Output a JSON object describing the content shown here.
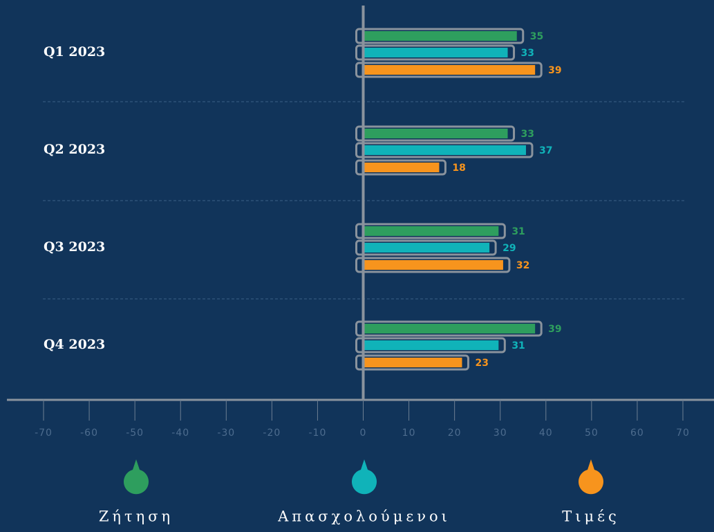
{
  "chart_data": {
    "type": "bar",
    "orientation": "horizontal",
    "categories": [
      "Q1 2023",
      "Q2 2023",
      "Q3 2023",
      "Q4 2023"
    ],
    "series": [
      {
        "name": "Ζήτηση",
        "color": "#2e9e5e",
        "values": [
          35,
          33,
          31,
          39
        ]
      },
      {
        "name": "Απασχολούμενοι",
        "color": "#10b3b9",
        "values": [
          33,
          37,
          29,
          31
        ]
      },
      {
        "name": "Τιμές",
        "color": "#f7941d",
        "values": [
          39,
          18,
          32,
          23
        ]
      }
    ],
    "xlim": [
      -70,
      70
    ],
    "xticks": [
      -70,
      -60,
      -50,
      -40,
      -30,
      -20,
      -10,
      0,
      10,
      20,
      30,
      40,
      50,
      60,
      70
    ],
    "legend": "bottom"
  }
}
